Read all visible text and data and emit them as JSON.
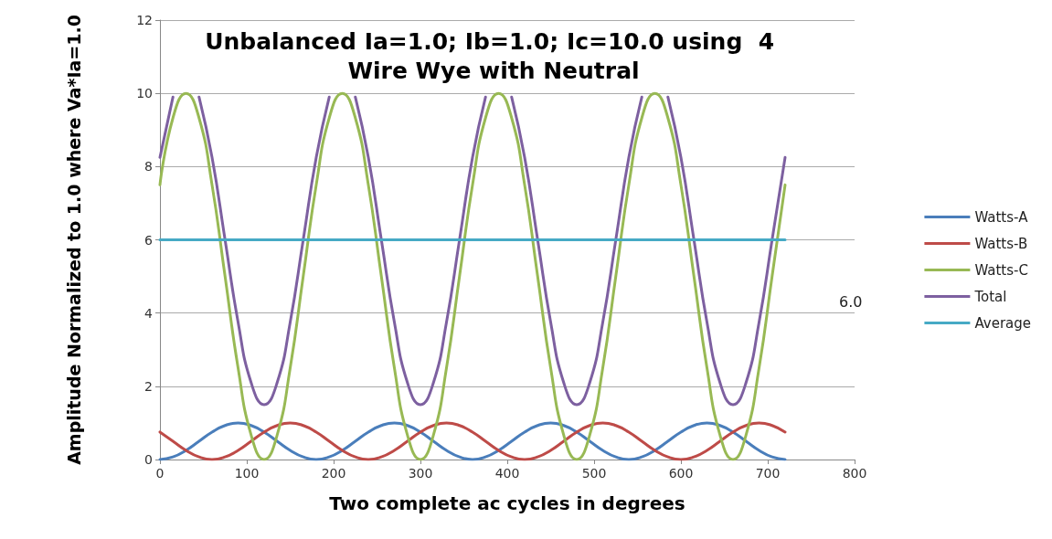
{
  "chart_data": {
    "type": "line",
    "title": "Unbalanced Ia=1.0; Ib=1.0; Ic=10.0 using  4 Wire Wye with Neutral",
    "xlabel": "Two complete ac cycles in degrees",
    "ylabel": "Amplitude Normalized to 1.0 where Va*Ia=1.0",
    "x": [
      0,
      15,
      30,
      45,
      60,
      75,
      90,
      105,
      120,
      135,
      150,
      165,
      180,
      195,
      210,
      225,
      240,
      255,
      270,
      285,
      300,
      315,
      330,
      345,
      360,
      375,
      390,
      405,
      420,
      435,
      450,
      465,
      480,
      495,
      510,
      525,
      540,
      555,
      570,
      585,
      600,
      615,
      630,
      645,
      660,
      675,
      690,
      705,
      720
    ],
    "series": [
      {
        "name": "Watts-A",
        "color": "#4a7ebb",
        "values": [
          0,
          0.07,
          0.25,
          0.5,
          0.75,
          0.93,
          1,
          0.93,
          0.75,
          0.5,
          0.25,
          0.07,
          0,
          0.07,
          0.25,
          0.5,
          0.75,
          0.93,
          1,
          0.93,
          0.75,
          0.5,
          0.25,
          0.07,
          0,
          0.07,
          0.25,
          0.5,
          0.75,
          0.93,
          1,
          0.93,
          0.75,
          0.5,
          0.25,
          0.07,
          0,
          0.07,
          0.25,
          0.5,
          0.75,
          0.93,
          1,
          0.93,
          0.75,
          0.5,
          0.25,
          0.07,
          0
        ]
      },
      {
        "name": "Watts-B",
        "color": "#be4b48",
        "values": [
          0.75,
          0.5,
          0.25,
          0.07,
          0,
          0.07,
          0.25,
          0.5,
          0.75,
          0.93,
          1,
          0.93,
          0.75,
          0.5,
          0.25,
          0.07,
          0,
          0.07,
          0.25,
          0.5,
          0.75,
          0.93,
          1,
          0.93,
          0.75,
          0.5,
          0.25,
          0.07,
          0,
          0.07,
          0.25,
          0.5,
          0.75,
          0.93,
          1,
          0.93,
          0.75,
          0.5,
          0.25,
          0.07,
          0,
          0.07,
          0.25,
          0.5,
          0.75,
          0.93,
          1,
          0.93,
          0.75
        ]
      },
      {
        "name": "Watts-C",
        "color": "#98b954",
        "values": [
          7.5,
          9.33,
          10,
          9.33,
          7.5,
          5,
          2.5,
          0.67,
          0,
          0.67,
          2.5,
          5,
          7.5,
          9.33,
          10,
          9.33,
          7.5,
          5,
          2.5,
          0.67,
          0,
          0.67,
          2.5,
          5,
          7.5,
          9.33,
          10,
          9.33,
          7.5,
          5,
          2.5,
          0.67,
          0,
          0.67,
          2.5,
          5,
          7.5,
          9.33,
          10,
          9.33,
          7.5,
          5,
          2.5,
          0.67,
          0,
          0.67,
          2.5,
          5,
          7.5
        ]
      },
      {
        "name": "Total",
        "color": "#7d60a0",
        "values": [
          8.25,
          9.9,
          null,
          9.9,
          8.25,
          6,
          3.75,
          2.1,
          1.5,
          2.1,
          3.75,
          6,
          8.25,
          9.9,
          null,
          9.9,
          8.25,
          6,
          3.75,
          2.1,
          1.5,
          2.1,
          3.75,
          6,
          8.25,
          9.9,
          null,
          9.9,
          8.25,
          6,
          3.75,
          2.1,
          1.5,
          2.1,
          3.75,
          6,
          8.25,
          9.9,
          null,
          9.9,
          8.25,
          6,
          3.75,
          2.1,
          1.5,
          2.1,
          3.75,
          6,
          8.25
        ]
      },
      {
        "name": "Average",
        "color": "#46aac5",
        "values": [
          6,
          6,
          6,
          6,
          6,
          6,
          6,
          6,
          6,
          6,
          6,
          6,
          6,
          6,
          6,
          6,
          6,
          6,
          6,
          6,
          6,
          6,
          6,
          6,
          6,
          6,
          6,
          6,
          6,
          6,
          6,
          6,
          6,
          6,
          6,
          6,
          6,
          6,
          6,
          6,
          6,
          6,
          6,
          6,
          6,
          6,
          6,
          6,
          6
        ]
      }
    ],
    "annotations": [
      "6.0"
    ],
    "xlim": [
      0,
      800
    ],
    "xticks": [
      0,
      100,
      200,
      300,
      400,
      500,
      600,
      700,
      800
    ],
    "ylim": [
      0,
      12
    ],
    "yticks": [
      0,
      2,
      4,
      6,
      8,
      10,
      12
    ],
    "grid": "y",
    "legend": "right",
    "marker": "none",
    "line_style": "solid"
  }
}
